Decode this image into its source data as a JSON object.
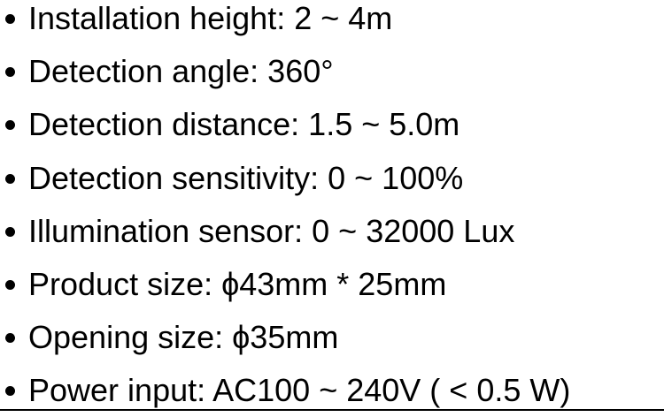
{
  "specs": [
    "Installation height: 2 ~ 4m",
    "Detection angle: 360°",
    "Detection distance: 1.5 ~ 5.0m",
    "Detection sensitivity: 0 ~ 100%",
    "Illumination sensor: 0 ~ 32000 Lux",
    "Product size: ϕ43mm * 25mm",
    "Opening size: ϕ35mm",
    "Power input: AC100 ~ 240V ( < 0.5 W)"
  ],
  "colors": {
    "text": "#000000",
    "background": "#ffffff"
  },
  "icons": {
    "bullet": "bullet-dot-icon"
  }
}
